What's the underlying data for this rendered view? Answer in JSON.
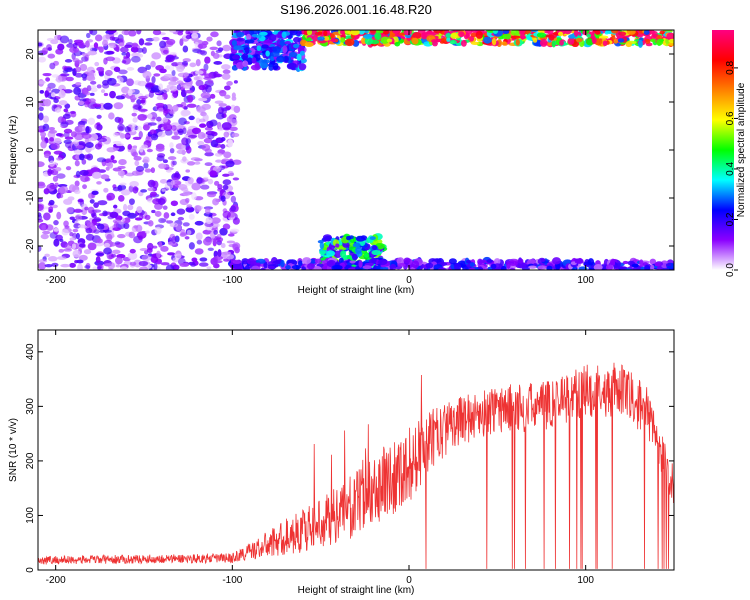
{
  "figure": {
    "title": "S196.2026.001.16.48.R20"
  },
  "chart_data": [
    {
      "type": "heatmap",
      "xlabel": "Height of straight line (km)",
      "ylabel": "Frequency (Hz)",
      "xlim": [
        -210,
        150
      ],
      "ylim": [
        -25,
        25
      ],
      "x_ticks": [
        -200,
        -100,
        0,
        100
      ],
      "y_ticks": [
        -20,
        -10,
        0,
        10,
        20
      ],
      "grid": false,
      "colorbar": {
        "label": "Normalized spectral amplitude",
        "ticks": [
          0.0,
          0.2,
          0.4,
          0.6,
          0.8
        ],
        "tick_labels": [
          "0.0",
          "0.2",
          "0.4",
          "0.6",
          "0.8"
        ],
        "range": [
          0,
          0.95
        ],
        "colormap": [
          "#ffffff",
          "#8b00ff",
          "#0000ff",
          "#00ffff",
          "#00ff00",
          "#ffff00",
          "#ff8000",
          "#ff0000",
          "#ff0080"
        ]
      },
      "regions": [
        {
          "x": [
            -210,
            -97
          ],
          "y": [
            -25,
            25
          ],
          "amplitude": 0.08,
          "pattern": "noise"
        },
        {
          "x": [
            -100,
            -60
          ],
          "y": [
            17,
            25
          ],
          "amplitude": 0.25,
          "pattern": "strong"
        },
        {
          "x": [
            -60,
            150
          ],
          "y": [
            22,
            25
          ],
          "amplitude": 0.85,
          "pattern": "strong"
        },
        {
          "x": [
            -50,
            -15
          ],
          "y": [
            -25,
            -18
          ],
          "amplitude": 0.4,
          "pattern": "strong"
        },
        {
          "x": [
            -100,
            150
          ],
          "y": [
            -25,
            -23
          ],
          "amplitude": 0.2,
          "pattern": "strong"
        }
      ]
    },
    {
      "type": "line",
      "xlabel": "Height of straight line (km)",
      "ylabel": "SNR (10 * v/v)",
      "xlim": [
        -210,
        150
      ],
      "ylim": [
        0,
        440
      ],
      "x_ticks": [
        -200,
        -100,
        0,
        100
      ],
      "y_ticks": [
        0,
        100,
        200,
        300,
        400
      ],
      "grid": false,
      "series": [
        {
          "color": "#ee3333",
          "profile_x": [
            -210,
            -150,
            -100,
            -85,
            -70,
            -50,
            -30,
            -15,
            0,
            10,
            25,
            50,
            75,
            100,
            120,
            135,
            150
          ],
          "profile_y": [
            18,
            20,
            22,
            40,
            60,
            85,
            120,
            160,
            190,
            230,
            270,
            295,
            300,
            330,
            330,
            290,
            150
          ],
          "noise_amplitude": [
            8,
            8,
            9,
            20,
            35,
            45,
            60,
            70,
            70,
            60,
            45,
            45,
            45,
            50,
            50,
            45,
            40
          ],
          "dropouts_to_zero": true
        }
      ]
    }
  ]
}
